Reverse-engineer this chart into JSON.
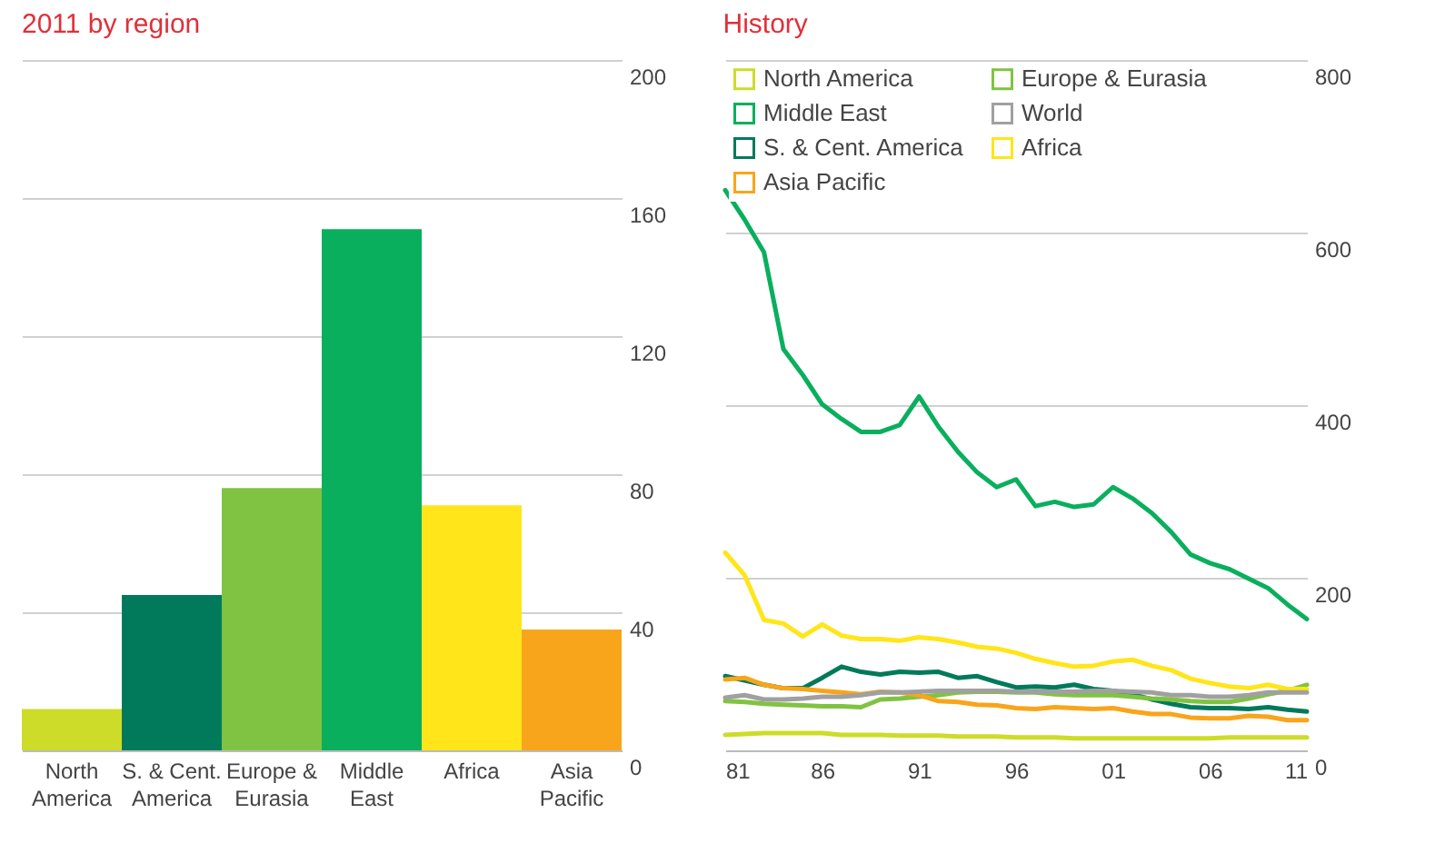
{
  "chart_data": [
    {
      "type": "bar",
      "title": "2011 by region",
      "categories": [
        "North\nAmerica",
        "S. & Cent.\nAmerica",
        "Europe &\nEurasia",
        "Middle\nEast",
        "Africa",
        "Asia\nPacific"
      ],
      "values": [
        12,
        45,
        76,
        151,
        71,
        35
      ],
      "colors": [
        "#cddc29",
        "#007a5a",
        "#80c342",
        "#0aaf5e",
        "#ffe51a",
        "#f8a51b"
      ],
      "ylim": [
        0,
        200
      ],
      "yticks": [
        0,
        40,
        80,
        120,
        160,
        200
      ],
      "grid": "y"
    },
    {
      "type": "line",
      "title": "History",
      "x": [
        1981,
        1982,
        1983,
        1984,
        1985,
        1986,
        1987,
        1988,
        1989,
        1990,
        1991,
        1992,
        1993,
        1994,
        1995,
        1996,
        1997,
        1998,
        1999,
        2000,
        2001,
        2002,
        2003,
        2004,
        2005,
        2006,
        2007,
        2008,
        2009,
        2010,
        2011
      ],
      "xlim": [
        1981,
        2011
      ],
      "xticks": [
        {
          "value": 1981,
          "label": "81"
        },
        {
          "value": 1986,
          "label": "86"
        },
        {
          "value": 1991,
          "label": "91"
        },
        {
          "value": 1996,
          "label": "96"
        },
        {
          "value": 2001,
          "label": "01"
        },
        {
          "value": 2006,
          "label": "06"
        },
        {
          "value": 2011,
          "label": "11"
        }
      ],
      "ylim": [
        0,
        800
      ],
      "yticks": [
        0,
        200,
        400,
        600,
        800
      ],
      "grid": "y",
      "legend": "top left",
      "marker": "none",
      "line_style": "solid",
      "series": [
        {
          "name": "North America",
          "color": "#cddc29",
          "values": [
            18,
            19,
            20,
            20,
            20,
            20,
            18,
            18,
            18,
            17,
            17,
            17,
            16,
            16,
            16,
            15,
            15,
            15,
            14,
            14,
            14,
            14,
            14,
            14,
            14,
            14,
            15,
            15,
            15,
            15,
            15
          ]
        },
        {
          "name": "S. & Cent. America",
          "color": "#007a5a",
          "values": [
            86,
            81,
            76,
            72,
            72,
            84,
            97,
            91,
            88,
            91,
            90,
            91,
            84,
            86,
            79,
            73,
            74,
            73,
            76,
            71,
            69,
            65,
            59,
            54,
            50,
            49,
            49,
            48,
            50,
            47,
            45
          ]
        },
        {
          "name": "Europe & Eurasia",
          "color": "#80c342",
          "values": [
            57,
            56,
            54,
            53,
            52,
            51,
            51,
            50,
            59,
            60,
            62,
            64,
            67,
            68,
            68,
            67,
            67,
            65,
            64,
            64,
            64,
            62,
            60,
            59,
            57,
            56,
            56,
            60,
            65,
            69,
            76
          ]
        },
        {
          "name": "Africa",
          "color": "#ffe51a",
          "values": [
            229,
            203,
            151,
            147,
            132,
            146,
            133,
            129,
            129,
            127,
            131,
            129,
            125,
            120,
            118,
            113,
            106,
            101,
            97,
            98,
            103,
            105,
            98,
            93,
            83,
            78,
            74,
            72,
            76,
            71,
            71
          ]
        },
        {
          "name": "Middle East",
          "color": "#0aaf5e",
          "values": [
            649,
            615,
            577,
            465,
            435,
            401,
            384,
            369,
            369,
            377,
            410,
            375,
            346,
            322,
            305,
            314,
            283,
            288,
            282,
            285,
            305,
            292,
            275,
            253,
            227,
            217,
            210,
            199,
            188,
            169,
            152
          ]
        },
        {
          "name": "Asia Pacific",
          "color": "#f8a51b",
          "values": [
            82,
            84,
            76,
            72,
            71,
            69,
            67,
            65,
            68,
            67,
            64,
            57,
            56,
            53,
            52,
            49,
            48,
            50,
            49,
            48,
            49,
            45,
            42,
            42,
            38,
            37,
            37,
            40,
            39,
            35,
            35
          ]
        },
        {
          "name": "World",
          "color": "#a0a0a0",
          "values": [
            61,
            64,
            59,
            59,
            60,
            62,
            62,
            64,
            67,
            67,
            68,
            69,
            69,
            69,
            69,
            68,
            68,
            68,
            68,
            69,
            69,
            68,
            67,
            64,
            64,
            62,
            62,
            64,
            67,
            67,
            67
          ]
        }
      ]
    }
  ]
}
